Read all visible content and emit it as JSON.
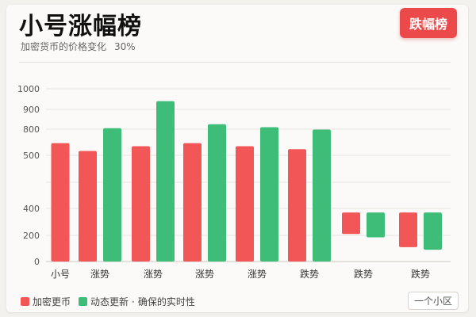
{
  "header": {
    "title": "小号涨幅榜",
    "subtitle": "加密货币的价格变化",
    "percent": "30%",
    "badge": "跌幅榜"
  },
  "legend": {
    "item1": "加密更币",
    "item2": "动态更新",
    "separator": "·",
    "item3": "确保的实时性"
  },
  "footer": {
    "button": "一个小区"
  },
  "colors": {
    "red": "#f25656",
    "green": "#3dbd78"
  },
  "chart_data": {
    "type": "bar",
    "title": "",
    "xlabel": "",
    "ylabel": "",
    "y_ticks": [
      "0",
      "200",
      "400",
      "500",
      "800",
      "900",
      "1000"
    ],
    "grid": true,
    "categories": [
      "小号",
      "涨势",
      "涨势",
      "涨势",
      "涨势",
      "跌势",
      "跌势",
      "跌势"
    ],
    "groups": [
      {
        "label": "小号",
        "bars": [
          {
            "color": "red",
            "from": 0,
            "to": 640
          }
        ]
      },
      {
        "label": "涨势",
        "bars": [
          {
            "color": "red",
            "from": 0,
            "to": 550
          },
          {
            "color": "green",
            "from": 0,
            "to": 805
          }
        ]
      },
      {
        "label": "涨势",
        "bars": [
          {
            "color": "red",
            "from": 0,
            "to": 605
          },
          {
            "color": "green",
            "from": 0,
            "to": 940
          }
        ]
      },
      {
        "label": "涨势",
        "bars": [
          {
            "color": "red",
            "from": 0,
            "to": 640
          },
          {
            "color": "green",
            "from": 0,
            "to": 825
          }
        ]
      },
      {
        "label": "涨势",
        "bars": [
          {
            "color": "red",
            "from": 0,
            "to": 605
          },
          {
            "color": "green",
            "from": 0,
            "to": 810
          }
        ]
      },
      {
        "label": "跌势",
        "bars": [
          {
            "color": "red",
            "from": 0,
            "to": 570
          },
          {
            "color": "green",
            "from": 0,
            "to": 795
          }
        ]
      },
      {
        "label": "跌势",
        "bars": [
          {
            "color": "red",
            "from": 210,
            "to": 370
          },
          {
            "color": "green",
            "from": 185,
            "to": 370
          }
        ]
      },
      {
        "label": "跌势",
        "bars": [
          {
            "color": "red",
            "from": 110,
            "to": 370
          },
          {
            "color": "green",
            "from": 90,
            "to": 370
          }
        ]
      }
    ]
  }
}
